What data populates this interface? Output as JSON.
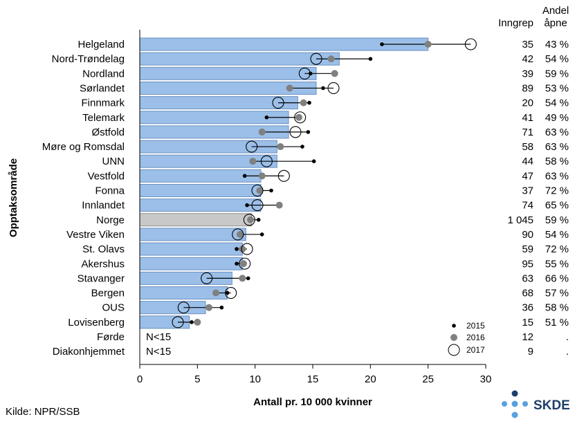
{
  "chart_data": {
    "type": "bar",
    "orientation": "horizontal",
    "ylabel": "Opptaksområde",
    "xlabel": "Antall pr. 10 000 kvinner",
    "xlim": [
      0,
      30
    ],
    "xticks": [
      0,
      5,
      10,
      15,
      20,
      25,
      30
    ],
    "grid": false,
    "legend_position": "bottom-right",
    "categories": [
      "Helgeland",
      "Nord-Trøndelag",
      "Nordland",
      "Sørlandet",
      "Finnmark",
      "Telemark",
      "Østfold",
      "Møre og Romsdal",
      "UNN",
      "Vestfold",
      "Fonna",
      "Innlandet",
      "Norge",
      "Vestre Viken",
      "St. Olavs",
      "Akershus",
      "Stavanger",
      "Bergen",
      "OUS",
      "Lovisenberg",
      "Førde",
      "Diakonhjemmet"
    ],
    "bars": [
      25.0,
      17.3,
      15.3,
      15.3,
      13.7,
      12.9,
      12.9,
      11.9,
      11.9,
      10.5,
      10.5,
      10.5,
      9.7,
      9.2,
      8.9,
      8.9,
      8.0,
      7.6,
      5.7,
      4.3,
      null,
      null
    ],
    "bar_text": [
      "",
      "",
      "",
      "",
      "",
      "",
      "",
      "",
      "",
      "",
      "",
      "",
      "",
      "",
      "",
      "",
      "",
      "",
      "",
      "",
      "N<15",
      "N<15"
    ],
    "highlight_category": "Norge",
    "series": [
      {
        "name": "2015",
        "marker": "small-black-dot",
        "values": [
          21.0,
          20.0,
          14.8,
          15.9,
          14.7,
          11.0,
          14.6,
          14.1,
          15.1,
          9.1,
          11.4,
          9.3,
          10.3,
          10.6,
          8.4,
          8.4,
          9.4,
          7.6,
          7.1,
          4.5,
          null,
          null
        ]
      },
      {
        "name": "2016",
        "marker": "gray-dot",
        "values": [
          25.0,
          16.6,
          16.9,
          13.0,
          14.2,
          13.8,
          10.6,
          12.2,
          9.8,
          10.6,
          10.4,
          12.1,
          9.6,
          8.7,
          8.9,
          9.0,
          8.9,
          6.6,
          6.0,
          5.0,
          null,
          null
        ]
      },
      {
        "name": "2017",
        "marker": "open-circle",
        "values": [
          28.7,
          15.3,
          14.3,
          16.8,
          12.0,
          13.9,
          13.5,
          9.7,
          11.0,
          12.5,
          10.2,
          10.2,
          9.5,
          8.5,
          9.3,
          9.1,
          5.8,
          7.9,
          3.8,
          3.3,
          null,
          null
        ]
      }
    ],
    "table_headers": {
      "inngrep": "Inngrep",
      "andel_line1": "Andel",
      "andel_line2": "åpne"
    },
    "inngrep": [
      "35",
      "42",
      "39",
      "89",
      "20",
      "41",
      "71",
      "58",
      "44",
      "47",
      "37",
      "74",
      "1 045",
      "90",
      "59",
      "95",
      "63",
      "68",
      "36",
      "15",
      "12",
      "9"
    ],
    "andel": [
      "43 %",
      "54 %",
      "59 %",
      "53 %",
      "54 %",
      "49 %",
      "63 %",
      "63 %",
      "58 %",
      "63 %",
      "72 %",
      "65 %",
      "59 %",
      "54 %",
      "72 %",
      "55 %",
      "66 %",
      "57 %",
      "58 %",
      "51 %",
      ".",
      "."
    ]
  },
  "footer": {
    "source": "Kilde: NPR/SSB",
    "logo_text": "SKDE"
  },
  "colors": {
    "bar": "#9bbfe8",
    "bar_stroke": "#6a8fc0",
    "highlight_bar": "#c8c8c8",
    "highlight_stroke": "#8a8a8a",
    "dot_2015": "#000000",
    "dot_2016": "#808080",
    "logo_dark": "#1d3d6b",
    "logo_light": "#5aa0e0"
  }
}
